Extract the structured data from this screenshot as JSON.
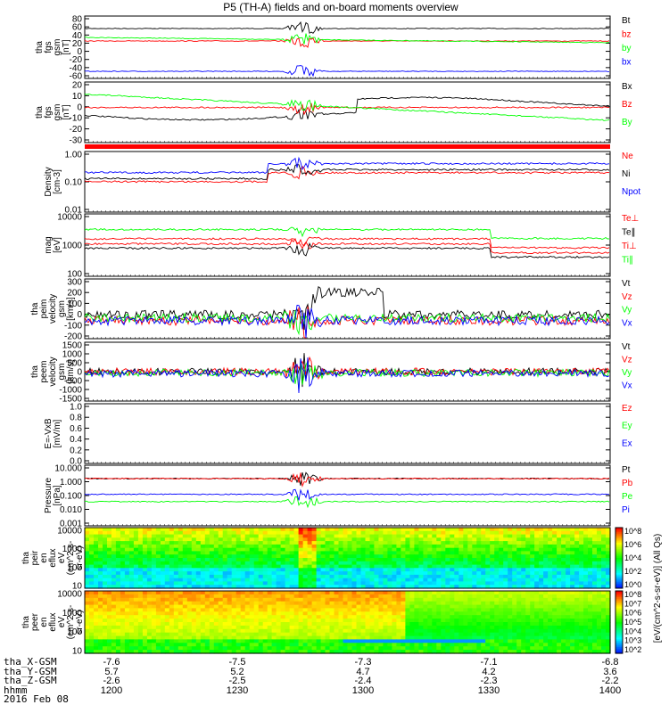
{
  "title": "P5 (TH-A) fields and on-board moments overview",
  "date_label": "2016 Feb 08",
  "colors": {
    "black": "#000000",
    "red": "#ff0000",
    "green": "#00ff00",
    "blue": "#0000ff",
    "bright_blue": "#0000ff"
  },
  "chart_data": [
    {
      "type": "line",
      "ylabel": [
        "tha",
        "fgs",
        "gsm",
        "[nT]"
      ],
      "yticks": [
        "80",
        "60",
        "40",
        "20",
        "0",
        "-20",
        "-40",
        "-60"
      ],
      "ylim": [
        -60,
        80
      ],
      "series": [
        {
          "name": "Bt",
          "color": "black"
        },
        {
          "name": "bz",
          "color": "red"
        },
        {
          "name": "by",
          "color": "green"
        },
        {
          "name": "bx",
          "color": "blue"
        }
      ]
    },
    {
      "type": "line",
      "ylabel": [
        "tha",
        "fgs",
        "gsm",
        "[nT]"
      ],
      "yticks": [
        "20",
        "10",
        "0",
        "-10",
        "-20",
        "-30"
      ],
      "ylim": [
        -35,
        25
      ],
      "series": [
        {
          "name": "Bx",
          "color": "black"
        },
        {
          "name": "Bz",
          "color": "red"
        },
        {
          "name": "By",
          "color": "green"
        }
      ]
    },
    {
      "type": "line",
      "ylabel": [
        "Density",
        "[cm-3]"
      ],
      "yticks": [
        "1.00",
        "0.10",
        "0.01"
      ],
      "ylim": [
        0.01,
        1.5
      ],
      "log": true,
      "series": [
        {
          "name": "Ne",
          "color": "red"
        },
        {
          "name": "Ni",
          "color": "black"
        },
        {
          "name": "Npot",
          "color": "blue"
        }
      ]
    },
    {
      "type": "line",
      "ylabel": [
        "mag",
        "[eV]"
      ],
      "yticks": [
        "10000",
        "1000",
        "100"
      ],
      "ylim": [
        100,
        10000
      ],
      "log": true,
      "series": [
        {
          "name": "Te⊥",
          "color": "red"
        },
        {
          "name": "Te∥",
          "color": "black"
        },
        {
          "name": "Ti⊥",
          "color": "red"
        },
        {
          "name": "Ti∥",
          "color": "green"
        }
      ]
    },
    {
      "type": "line",
      "ylabel": [
        "tha",
        "peim",
        "velocity",
        "gsm",
        "[km/s]"
      ],
      "yticks": [
        "300",
        "200",
        "100",
        "0",
        "-100",
        "-200"
      ],
      "ylim": [
        -200,
        300
      ],
      "series": [
        {
          "name": "Vt",
          "color": "black"
        },
        {
          "name": "Vz",
          "color": "red"
        },
        {
          "name": "Vy",
          "color": "green"
        },
        {
          "name": "Vx",
          "color": "blue"
        }
      ]
    },
    {
      "type": "line",
      "ylabel": [
        "tha",
        "peem",
        "velocity",
        "gsm",
        "[km/s]"
      ],
      "yticks": [
        "1500",
        "1000",
        "500",
        "0",
        "-500",
        "-1000",
        "-1500"
      ],
      "ylim": [
        -1500,
        1500
      ],
      "series": [
        {
          "name": "Vt",
          "color": "black"
        },
        {
          "name": "Vz",
          "color": "red"
        },
        {
          "name": "Vy",
          "color": "green"
        },
        {
          "name": "Vx",
          "color": "blue"
        }
      ]
    },
    {
      "type": "line",
      "ylabel": [
        "E=-VxB",
        "[mV/m]"
      ],
      "yticks": [
        "1.0",
        "0.8",
        "0.6",
        "0.4",
        "0.2",
        "0.0"
      ],
      "ylim": [
        0,
        1
      ],
      "series": [
        {
          "name": "Ez",
          "color": "red"
        },
        {
          "name": "Ey",
          "color": "green"
        },
        {
          "name": "Ex",
          "color": "blue"
        }
      ]
    },
    {
      "type": "line",
      "ylabel": [
        "Pressure",
        "[nPa]"
      ],
      "yticks": [
        "10.000",
        "1.000",
        "0.100",
        "0.010",
        "0.001"
      ],
      "ylim": [
        0.001,
        10
      ],
      "log": true,
      "series": [
        {
          "name": "Pt",
          "color": "black"
        },
        {
          "name": "Pb",
          "color": "red"
        },
        {
          "name": "Pe",
          "color": "green"
        },
        {
          "name": "Pi",
          "color": "blue"
        }
      ]
    },
    {
      "type": "heatmap",
      "ylabel": [
        "tha",
        "peir",
        "en",
        "eflux",
        "eV",
        "(cm^2-s-",
        "sr-eV)"
      ],
      "yticks": [
        "10000",
        "1000",
        "100",
        "10"
      ],
      "ylim": [
        5,
        30000
      ],
      "log": true
    },
    {
      "type": "heatmap",
      "ylabel": [
        "tha",
        "peer",
        "en",
        "eflux",
        "eV",
        "(cm^2-s-",
        "sr-eV)"
      ],
      "yticks": [
        "10000",
        "1000",
        "100",
        "10"
      ],
      "ylim": [
        5,
        30000
      ],
      "log": true
    }
  ],
  "colorbar_ticks_ion": [
    "10^8",
    "10^6",
    "10^4",
    "10^2",
    "10^0"
  ],
  "colorbar_ticks_ele": [
    "10^8",
    "10^7",
    "10^6",
    "10^5",
    "10^4",
    "10^3",
    "10^2"
  ],
  "colorbar_label": "[eV/(cm^2-s-sr-eV)] (All Qs)",
  "x_rows": {
    "labels": [
      "tha_X-GSM",
      "tha_Y-GSM",
      "tha_Z-GSM",
      "hhmm"
    ],
    "columns": [
      {
        "x": "-7.6",
        "y": "5.7",
        "z": "-2.6",
        "t": "1200"
      },
      {
        "x": "-7.5",
        "y": "5.2",
        "z": "-2.5",
        "t": "1230"
      },
      {
        "x": "-7.3",
        "y": "4.7",
        "z": "-2.4",
        "t": "1300"
      },
      {
        "x": "-7.1",
        "y": "4.2",
        "z": "-2.3",
        "t": "1330"
      },
      {
        "x": "-6.8",
        "y": "3.6",
        "z": "-2.2",
        "t": "1400"
      }
    ]
  }
}
